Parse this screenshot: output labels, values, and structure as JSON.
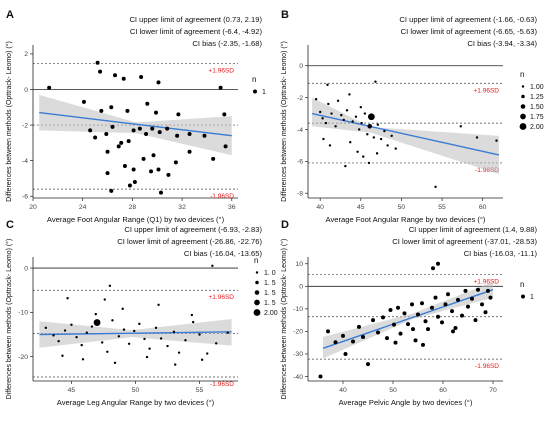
{
  "chart_data": [
    {
      "panel": "A",
      "type": "scatter",
      "xlabel": "Average Foot Angular Range (Q1) by two devices (°)",
      "ylabel": "Differences between methods (Opttrack- Leomo) (°)",
      "xlim": [
        20,
        36.5
      ],
      "ylim": [
        -6.1,
        2.5
      ],
      "xticks": [
        20,
        24,
        28,
        32,
        36
      ],
      "yticks": [
        -6,
        -4,
        -2,
        0,
        2
      ],
      "annotations": [
        "CI upper limit of agreement",
        "(0.73, 2.19)",
        "CI lower limit of agreement",
        "(-6.4, -4.92)",
        "CI bias",
        "(-2.35, -1.68)"
      ],
      "limits": {
        "upper": 1.45,
        "bias": -2.0,
        "lower": -5.6,
        "upper_label": "+1.96SD",
        "lower_label": "-1.96SD"
      },
      "regression": {
        "x": [
          20.5,
          36
        ],
        "y": [
          -1.3,
          -2.6
        ]
      },
      "ci_band": {
        "x": [
          20.5,
          28.3,
          36
        ],
        "upper": [
          -0.3,
          -1.85,
          -1.5
        ],
        "lower": [
          -2.3,
          -2.45,
          -3.7
        ]
      },
      "legend": {
        "title": "n",
        "items": [
          {
            "label": "1",
            "size": 1
          }
        ]
      },
      "points": [
        [
          21.3,
          0.1,
          1
        ],
        [
          25.2,
          1.5,
          1
        ],
        [
          25.4,
          1.0,
          1
        ],
        [
          26.6,
          0.8,
          1
        ],
        [
          27.3,
          0.6,
          1
        ],
        [
          28.7,
          0.7,
          1
        ],
        [
          30.1,
          0.4,
          1
        ],
        [
          35.1,
          0.1,
          1
        ],
        [
          24.1,
          -0.7,
          1
        ],
        [
          25.5,
          -1.2,
          1
        ],
        [
          26.3,
          -1.0,
          1
        ],
        [
          27.6,
          -1.2,
          1
        ],
        [
          29.2,
          -0.8,
          1
        ],
        [
          29.9,
          -1.3,
          1
        ],
        [
          31.7,
          -1.4,
          1
        ],
        [
          24.6,
          -2.3,
          1
        ],
        [
          25.0,
          -2.7,
          1
        ],
        [
          25.9,
          -2.5,
          1
        ],
        [
          26.4,
          -2.1,
          1
        ],
        [
          27.1,
          -3.0,
          1
        ],
        [
          27.7,
          -2.9,
          1
        ],
        [
          28.1,
          -2.3,
          1
        ],
        [
          28.6,
          -2.2,
          1
        ],
        [
          29.1,
          -2.5,
          1
        ],
        [
          29.6,
          -2.2,
          1
        ],
        [
          30.2,
          -2.4,
          1
        ],
        [
          30.8,
          -2.2,
          1
        ],
        [
          31.6,
          -2.6,
          1
        ],
        [
          32.6,
          -2.5,
          1
        ],
        [
          33.8,
          -2.6,
          1
        ],
        [
          26.0,
          -3.5,
          1
        ],
        [
          26.9,
          -3.2,
          1
        ],
        [
          27.4,
          -4.3,
          1
        ],
        [
          28.1,
          -4.5,
          1
        ],
        [
          28.9,
          -3.9,
          1
        ],
        [
          29.7,
          -3.7,
          1
        ],
        [
          30.1,
          -4.5,
          1
        ],
        [
          31.5,
          -4.1,
          1
        ],
        [
          32.6,
          -3.5,
          1
        ],
        [
          34.5,
          -3.9,
          1
        ],
        [
          35.5,
          -3.2,
          1
        ],
        [
          26.0,
          -4.7,
          1
        ],
        [
          26.3,
          -5.7,
          1
        ],
        [
          27.8,
          -5.4,
          1
        ],
        [
          28.2,
          -5.2,
          1
        ],
        [
          29.5,
          -4.6,
          1
        ],
        [
          30.3,
          -5.8,
          1
        ],
        [
          30.9,
          -4.8,
          1
        ],
        [
          35.4,
          -1.4,
          1
        ]
      ]
    },
    {
      "panel": "B",
      "type": "scatter",
      "xlabel": "Average Foot Angular Range by two devices (°)",
      "ylabel": "Differences between methods (Opttrack- Leomo) (°)",
      "xlim": [
        38.5,
        62.5
      ],
      "ylim": [
        -8.3,
        1.3
      ],
      "xticks": [
        40,
        45,
        50,
        55,
        60
      ],
      "yticks": [
        -8,
        -6,
        -4,
        -2,
        0
      ],
      "annotations": [
        "CI upper limit of agreement",
        "(-1.66, -0.63)",
        "CI lower limit of agreement",
        "(-6.65, -5.63)",
        "CI bias",
        "(-3.94, -3.34)"
      ],
      "limits": {
        "upper": -1.1,
        "bias": -3.6,
        "lower": -6.1,
        "upper_label": "+1.96SD",
        "lower_label": "-1.96SD"
      },
      "regression": {
        "x": [
          39,
          62
        ],
        "y": [
          -3.0,
          -5.6
        ]
      },
      "ci_band": {
        "x": [
          39,
          46.2,
          62
        ],
        "upper": [
          -2.0,
          -3.85,
          -4.4
        ],
        "lower": [
          -3.8,
          -4.2,
          -6.8
        ]
      },
      "legend": {
        "title": "n",
        "items": [
          {
            "label": "1.00",
            "size": 1.0
          },
          {
            "label": "1.25",
            "size": 1.25
          },
          {
            "label": "1.50",
            "size": 1.5
          },
          {
            "label": "1.75",
            "size": 1.75
          },
          {
            "label": "2.00",
            "size": 2.0
          }
        ]
      },
      "points": [
        [
          39.5,
          -2.1,
          1
        ],
        [
          40.0,
          -2.9,
          1
        ],
        [
          40.3,
          -3.3,
          1
        ],
        [
          40.7,
          -3.6,
          1
        ],
        [
          41.0,
          -2.4,
          1
        ],
        [
          41.4,
          -3.0,
          1
        ],
        [
          41.9,
          -3.8,
          1
        ],
        [
          42.2,
          -2.2,
          1
        ],
        [
          42.6,
          -3.1,
          1
        ],
        [
          42.9,
          -3.4,
          1
        ],
        [
          43.3,
          -2.8,
          1
        ],
        [
          43.6,
          -1.8,
          1
        ],
        [
          44.0,
          -3.5,
          1
        ],
        [
          44.4,
          -3.2,
          1
        ],
        [
          44.8,
          -4.0,
          1
        ],
        [
          45.1,
          -3.6,
          1
        ],
        [
          45.5,
          -3.0,
          1
        ],
        [
          45.8,
          -4.3,
          1
        ],
        [
          46.1,
          -3.8,
          1.5
        ],
        [
          46.3,
          -3.2,
          2.0
        ],
        [
          46.6,
          -4.5,
          1
        ],
        [
          47.1,
          -3.7,
          1
        ],
        [
          47.5,
          -4.6,
          1
        ],
        [
          47.9,
          -4.1,
          1
        ],
        [
          48.3,
          -5.0,
          1
        ],
        [
          48.8,
          -4.4,
          1
        ],
        [
          49.3,
          -5.2,
          1
        ],
        [
          40.4,
          -4.6,
          1
        ],
        [
          41.2,
          -5.0,
          1
        ],
        [
          43.7,
          -4.8,
          1
        ],
        [
          44.6,
          -5.4,
          1
        ],
        [
          45.3,
          -5.7,
          1
        ],
        [
          46.0,
          -6.1,
          1
        ],
        [
          47.0,
          -5.5,
          1
        ],
        [
          43.1,
          -6.3,
          1
        ],
        [
          40.9,
          -1.2,
          1
        ],
        [
          46.8,
          -1.0,
          1
        ],
        [
          45.0,
          -2.6,
          1
        ],
        [
          54.2,
          -7.6,
          1
        ],
        [
          57.3,
          -3.8,
          1
        ],
        [
          61.7,
          -4.7,
          1
        ],
        [
          59.3,
          -4.5,
          1
        ]
      ]
    },
    {
      "panel": "C",
      "type": "scatter",
      "xlabel": "Average Leg Angular Range by two devices (°)",
      "ylabel": "Differences between methods (Opttrack- Leomo) (°)",
      "xlim": [
        42,
        58
      ],
      "ylim": [
        -25.5,
        2.5
      ],
      "xticks": [
        45,
        50,
        55
      ],
      "yticks": [
        -20,
        -10,
        0
      ],
      "annotations": [
        "CI upper limit of agreement",
        "(-6.93, -2.83)",
        "CI lower limit of agreement",
        "(-26.86, -22.76)",
        "CI bias",
        "(-16.04, -13.65)"
      ],
      "limits": {
        "upper": -5.0,
        "bias": -14.8,
        "lower": -24.6,
        "upper_label": "+1.96SD",
        "lower_label": "-1.96SD"
      },
      "regression": {
        "x": [
          42.5,
          57.5
        ],
        "y": [
          -15.0,
          -14.4
        ]
      },
      "ci_band": {
        "x": [
          42.5,
          49.7,
          57.5
        ],
        "upper": [
          -12.0,
          -14.0,
          -11.5
        ],
        "lower": [
          -18.0,
          -15.6,
          -17.5
        ]
      },
      "legend": {
        "title": "n",
        "items": [
          {
            "label": "1. 0",
            "size": 1.0
          },
          {
            "label": "1. 5",
            "size": 1.25
          },
          {
            "label": "1. 5",
            "size": 1.5
          },
          {
            "label": "1. 5",
            "size": 1.75
          },
          {
            "label": "2.00",
            "size": 2.0
          }
        ]
      },
      "points": [
        [
          43.0,
          -13.5,
          1
        ],
        [
          43.6,
          -15.2,
          1
        ],
        [
          44.0,
          -16.5,
          1
        ],
        [
          44.5,
          -14.1,
          1
        ],
        [
          45.0,
          -12.8,
          1
        ],
        [
          45.4,
          -15.6,
          1
        ],
        [
          45.8,
          -17.4,
          1
        ],
        [
          46.2,
          -14.6,
          1
        ],
        [
          46.6,
          -13.2,
          1
        ],
        [
          47.0,
          -12.3,
          2.0
        ],
        [
          47.4,
          -16.8,
          1
        ],
        [
          47.8,
          -18.9,
          1
        ],
        [
          48.2,
          -11.8,
          1
        ],
        [
          48.7,
          -15.4,
          1
        ],
        [
          49.1,
          -13.9,
          1
        ],
        [
          49.5,
          -17.1,
          1
        ],
        [
          49.9,
          -14.2,
          1
        ],
        [
          50.3,
          -12.6,
          1
        ],
        [
          50.7,
          -16.0,
          1
        ],
        [
          51.1,
          -18.2,
          1
        ],
        [
          51.6,
          -13.5,
          1
        ],
        [
          52.0,
          -15.9,
          1
        ],
        [
          52.5,
          -17.6,
          1
        ],
        [
          53.0,
          -14.4,
          1
        ],
        [
          53.4,
          -19.1,
          1
        ],
        [
          53.9,
          -16.3,
          1
        ],
        [
          54.5,
          -12.2,
          1
        ],
        [
          55.0,
          -15.0,
          1
        ],
        [
          55.6,
          -19.3,
          1
        ],
        [
          56.3,
          -17.0,
          1
        ],
        [
          57.2,
          -14.6,
          1
        ],
        [
          44.3,
          -19.8,
          1
        ],
        [
          45.9,
          -20.6,
          1
        ],
        [
          48.4,
          -21.4,
          1
        ],
        [
          50.9,
          -20.1,
          1
        ],
        [
          53.1,
          -21.8,
          1
        ],
        [
          55.2,
          -20.7,
          1
        ],
        [
          49.0,
          -9.2,
          1
        ],
        [
          47.6,
          -7.1,
          1
        ],
        [
          51.8,
          -8.3,
          1
        ],
        [
          44.7,
          -6.8,
          1
        ],
        [
          48.0,
          -4.0,
          1
        ],
        [
          56.0,
          0.5,
          1
        ],
        [
          54.4,
          -10.6,
          1
        ],
        [
          46.9,
          -10.4,
          1
        ]
      ]
    },
    {
      "panel": "D",
      "type": "scatter",
      "xlabel": "Average Pelvic Angle by two devices (°)",
      "ylabel": "Differences between methods (Opttrack- Leomo) (°)",
      "xlim": [
        33,
        72
      ],
      "ylim": [
        -42,
        13
      ],
      "xticks": [
        40,
        50,
        60,
        70
      ],
      "yticks": [
        -40,
        -30,
        -20,
        -10,
        0,
        10
      ],
      "annotations": [
        "CI upper limit of agreement",
        "(1.4, 9.88)",
        "CI lower limit of agreement",
        "(-37.01, -28.53)",
        "CI bias",
        "(-16.03, -11.1)"
      ],
      "limits": {
        "upper": 5.2,
        "bias": -13.5,
        "lower": -32.3,
        "upper_label": "+1.96SD",
        "lower_label": "-1.96SD"
      },
      "regression": {
        "x": [
          36,
          70
        ],
        "y": [
          -27.5,
          -1.5
        ]
      },
      "ci_band": {
        "x": [
          36,
          54,
          70
        ],
        "upper": [
          -22.5,
          -12.0,
          2.0
        ],
        "lower": [
          -32.0,
          -14.5,
          -5.0
        ]
      },
      "legend": {
        "title": "n",
        "items": [
          {
            "label": "1",
            "size": 1
          }
        ]
      },
      "points": [
        [
          35.5,
          -40.0,
          1
        ],
        [
          37.0,
          -20.0,
          1
        ],
        [
          38.5,
          -24.8,
          1
        ],
        [
          40.0,
          -22.0,
          1
        ],
        [
          40.5,
          -30.0,
          1
        ],
        [
          42.0,
          -24.5,
          1
        ],
        [
          43.2,
          -18.0,
          1
        ],
        [
          44.0,
          -22.5,
          1
        ],
        [
          45.0,
          -34.5,
          1
        ],
        [
          46.0,
          -15.0,
          1
        ],
        [
          47.0,
          -20.5,
          1
        ],
        [
          48.0,
          -13.8,
          1
        ],
        [
          48.8,
          -23.0,
          1
        ],
        [
          49.5,
          -10.5,
          1
        ],
        [
          50.2,
          -17.0,
          1
        ],
        [
          51.0,
          -9.5,
          1
        ],
        [
          51.5,
          -21.0,
          1
        ],
        [
          52.3,
          -12.0,
          1
        ],
        [
          53.0,
          -16.8,
          1
        ],
        [
          53.8,
          -8.0,
          1
        ],
        [
          54.5,
          -24.0,
          1
        ],
        [
          55.0,
          -12.5,
          1
        ],
        [
          55.8,
          -7.5,
          1
        ],
        [
          56.5,
          -15.5,
          1
        ],
        [
          57.0,
          -19.0,
          1
        ],
        [
          57.8,
          -9.5,
          1
        ],
        [
          58.5,
          -5.0,
          1
        ],
        [
          59.0,
          -13.5,
          1
        ],
        [
          59.8,
          -16.0,
          1
        ],
        [
          60.5,
          -8.0,
          1
        ],
        [
          61.0,
          -3.5,
          1
        ],
        [
          61.8,
          -11.0,
          1
        ],
        [
          62.5,
          -18.5,
          1
        ],
        [
          63.0,
          -6.0,
          1
        ],
        [
          63.8,
          -13.0,
          1
        ],
        [
          64.5,
          -2.0,
          1
        ],
        [
          65.0,
          -9.0,
          1
        ],
        [
          65.8,
          -5.5,
          1
        ],
        [
          66.5,
          -15.0,
          1
        ],
        [
          67.0,
          -1.5,
          1
        ],
        [
          67.8,
          -8.0,
          1
        ],
        [
          68.5,
          -11.5,
          1
        ],
        [
          69.0,
          -2.0,
          1
        ],
        [
          69.5,
          -5.0,
          1
        ],
        [
          58.0,
          8.0,
          1
        ],
        [
          59.0,
          10.0,
          1
        ],
        [
          56.0,
          -26.0,
          1
        ],
        [
          54.0,
          -19.0,
          1
        ],
        [
          62.0,
          -20.0,
          1
        ],
        [
          50.5,
          -25.0,
          1
        ]
      ]
    }
  ]
}
